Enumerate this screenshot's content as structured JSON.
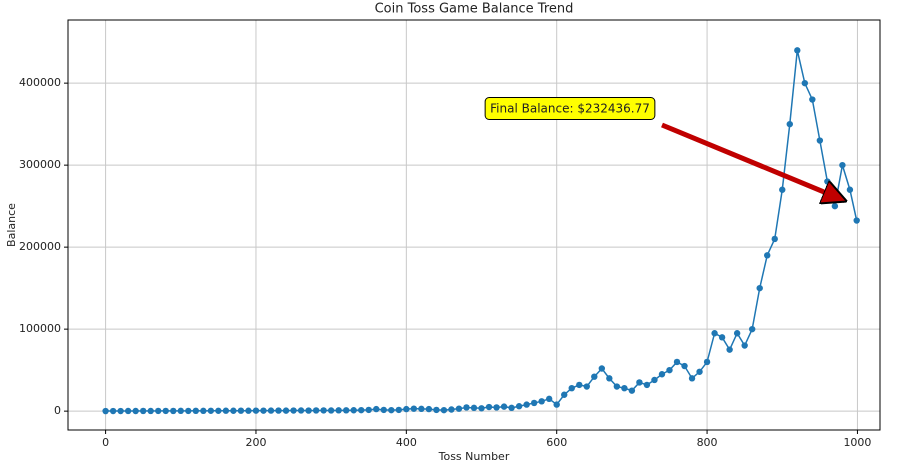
{
  "chart_data": {
    "type": "line",
    "title": "Coin Toss Game Balance Trend",
    "x_label": "Toss Number",
    "y_label": "Balance",
    "x": [
      0,
      10,
      20,
      30,
      40,
      50,
      60,
      70,
      80,
      90,
      100,
      110,
      120,
      130,
      140,
      150,
      160,
      170,
      180,
      190,
      200,
      210,
      220,
      230,
      240,
      250,
      260,
      270,
      280,
      290,
      300,
      310,
      320,
      330,
      340,
      350,
      360,
      370,
      380,
      390,
      400,
      410,
      420,
      430,
      440,
      450,
      460,
      470,
      480,
      490,
      500,
      510,
      520,
      530,
      540,
      550,
      560,
      570,
      580,
      590,
      600,
      610,
      620,
      630,
      640,
      650,
      660,
      670,
      680,
      690,
      700,
      710,
      720,
      730,
      740,
      750,
      760,
      770,
      780,
      790,
      800,
      810,
      820,
      830,
      840,
      850,
      860,
      870,
      880,
      890,
      900,
      910,
      920,
      930,
      940,
      950,
      960,
      970,
      980,
      990,
      999
    ],
    "series": [
      {
        "name": "Balance",
        "color": "#1f77b4",
        "values": [
          100,
          150,
          120,
          200,
          180,
          250,
          220,
          300,
          280,
          250,
          350,
          300,
          400,
          380,
          450,
          420,
          500,
          480,
          550,
          520,
          600,
          580,
          650,
          700,
          620,
          750,
          800,
          700,
          850,
          900,
          800,
          950,
          1000,
          1100,
          1200,
          1500,
          2500,
          1500,
          1200,
          1500,
          2500,
          3000,
          2800,
          2500,
          1500,
          1200,
          2000,
          3000,
          4500,
          4000,
          3500,
          5000,
          4500,
          5500,
          4000,
          6000,
          8000,
          10000,
          12000,
          15000,
          8000,
          20000,
          28000,
          32000,
          30000,
          42000,
          52000,
          40000,
          30000,
          28000,
          25000,
          35000,
          32000,
          38000,
          45000,
          50000,
          60000,
          55000,
          40000,
          48000,
          60000,
          95000,
          90000,
          75000,
          95000,
          80000,
          100000,
          150000,
          190000,
          210000,
          270000,
          350000,
          440000,
          400000,
          380000,
          330000,
          280000,
          250000,
          300000,
          270000,
          232436.77
        ]
      }
    ],
    "annotation": "Final Balance: $232436.77",
    "xlim": [
      -50,
      1030
    ],
    "ylim": [
      -23000,
      477000
    ],
    "xticks": [
      0,
      200,
      400,
      600,
      800,
      1000
    ],
    "yticks": [
      0,
      100000,
      200000,
      300000,
      400000
    ],
    "grid": true
  }
}
